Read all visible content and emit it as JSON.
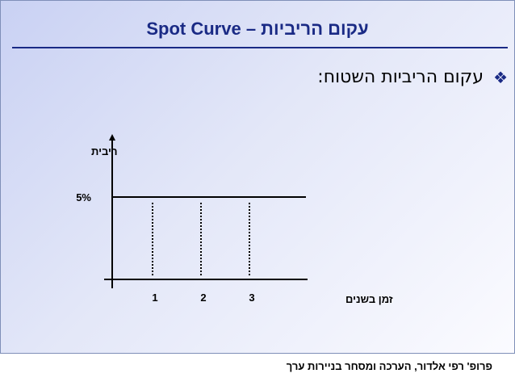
{
  "title": "עקום הריביות – Spot Curve",
  "bullet": {
    "icon": "diamond-bullet-icon",
    "text": "עקום הריביות השטוח:"
  },
  "chart_data": {
    "type": "line",
    "xlabel": "זמן בשנים",
    "ylabel": "ריבית",
    "x_ticks": [
      "1",
      "2",
      "3"
    ],
    "y_tick_label": "5%",
    "series": [
      {
        "x": [
          0,
          4
        ],
        "y": [
          5,
          5
        ]
      }
    ],
    "reference_lines": [
      1,
      2,
      3
    ],
    "xlim": [
      0,
      4
    ],
    "ylim": [
      0,
      8
    ],
    "grid": false
  },
  "footer": "פרופ' רפי אלדור, הערכה ומסחר בניירות ערך",
  "colors": {
    "title": "#1a2a85",
    "axis": "#000000"
  }
}
